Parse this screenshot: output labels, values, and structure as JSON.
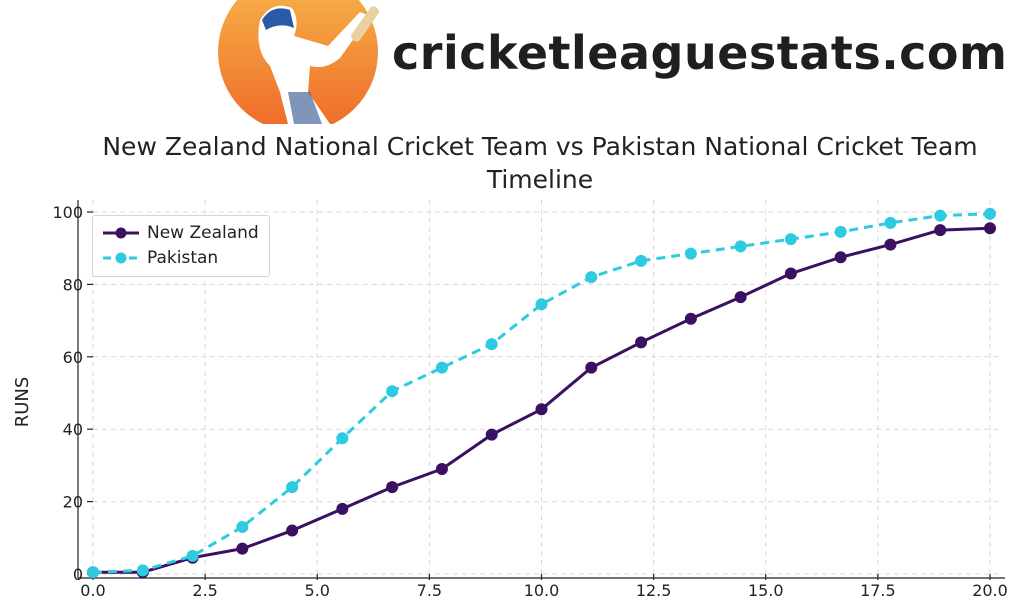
{
  "site": {
    "name": "cricketleaguestats.com",
    "logo_icon": "cricket-batsman-icon"
  },
  "colors": {
    "new_zealand": "#3a1060",
    "pakistan": "#2ecbe0",
    "grid": "#d9d9d9",
    "axis": "#222222",
    "logo_circle": "#f39a3a"
  },
  "chart_data": {
    "type": "line",
    "title": "New Zealand National Cricket Team vs Pakistan National Cricket Team Timeline",
    "title_line1": "New Zealand National Cricket Team vs Pakistan National Cricket Team",
    "title_line2": "Timeline",
    "xlabel": "",
    "ylabel": "RUNS",
    "xlim": [
      0,
      20
    ],
    "ylim": [
      0,
      100
    ],
    "x_ticks": [
      "0.0",
      "2.5",
      "5.0",
      "7.5",
      "10.0",
      "12.5",
      "15.0",
      "17.5",
      "20.0"
    ],
    "y_ticks": [
      "0",
      "20",
      "40",
      "60",
      "80",
      "100"
    ],
    "grid": true,
    "legend_position": "top-left",
    "x": [
      0.0,
      1.11,
      2.22,
      3.33,
      4.44,
      5.56,
      6.67,
      7.78,
      8.89,
      10.0,
      11.11,
      12.22,
      13.33,
      14.44,
      15.56,
      16.67,
      17.78,
      18.89,
      20.0
    ],
    "series": [
      {
        "name": "New Zealand",
        "style": "solid",
        "values": [
          0.5,
          0.5,
          4.5,
          7,
          12,
          18,
          24,
          29,
          38.5,
          45.5,
          57,
          64,
          70.5,
          76.5,
          83,
          87.5,
          91,
          95,
          95.5
        ]
      },
      {
        "name": "Pakistan",
        "style": "dashed",
        "values": [
          0.5,
          1,
          5,
          13,
          24,
          37.5,
          50.5,
          57,
          63.5,
          74.5,
          82,
          86.5,
          88.5,
          90.5,
          92.5,
          94.5,
          97,
          99,
          99.5
        ]
      }
    ]
  }
}
